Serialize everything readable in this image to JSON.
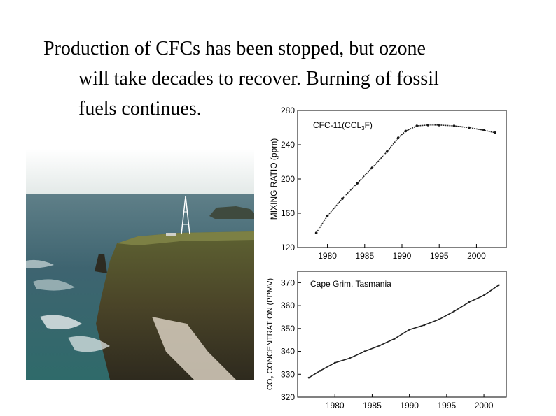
{
  "slide": {
    "text_lines": [
      "Production of CFCs has been stopped, but ozone",
      "will take decades to recover. Burning of fossil",
      "fuels continues."
    ]
  },
  "photo": {
    "icon": "coastal-station-photo"
  },
  "chart_data": [
    {
      "type": "scatter",
      "title": "CFC-11 (CCl3F)",
      "title_main": "CFC-11(CCL",
      "title_sub": "3",
      "title_end": "F)",
      "ylabel": "MIXING RATIO (ppm)",
      "xlabel": "",
      "xlim": [
        1976,
        2004
      ],
      "ylim": [
        120,
        280
      ],
      "xticks": [
        1980,
        1985,
        1990,
        1995,
        2000
      ],
      "yticks": [
        120,
        160,
        200,
        240,
        280
      ],
      "grid": false,
      "x": [
        1978.5,
        1980,
        1982,
        1984,
        1986,
        1988,
        1989.5,
        1990.5,
        1992,
        1993.5,
        1995,
        1997,
        1999,
        2001,
        2002.5
      ],
      "y": [
        137,
        157,
        177,
        195,
        213,
        232,
        248,
        256,
        262,
        263,
        263,
        262,
        260,
        257,
        254
      ]
    },
    {
      "type": "line",
      "title": "Cape Grim, Tasmania",
      "ylabel_main": "CO",
      "ylabel_sub": "2",
      "ylabel_end": " CONCENTRATION (PPMV)",
      "xlabel": "",
      "xlim": [
        1975,
        2003
      ],
      "ylim": [
        320,
        375
      ],
      "xticks": [
        1980,
        1985,
        1990,
        1995,
        2000
      ],
      "yticks": [
        320,
        330,
        340,
        350,
        360,
        370
      ],
      "grid": false,
      "x": [
        1976.5,
        1978,
        1980,
        1982,
        1984,
        1986,
        1988,
        1990,
        1992,
        1994,
        1996,
        1998,
        2000,
        2002
      ],
      "y": [
        328.5,
        331.5,
        335,
        337,
        340,
        342.5,
        345.5,
        349.5,
        351.5,
        354,
        357.5,
        361.5,
        364.5,
        369
      ]
    }
  ]
}
